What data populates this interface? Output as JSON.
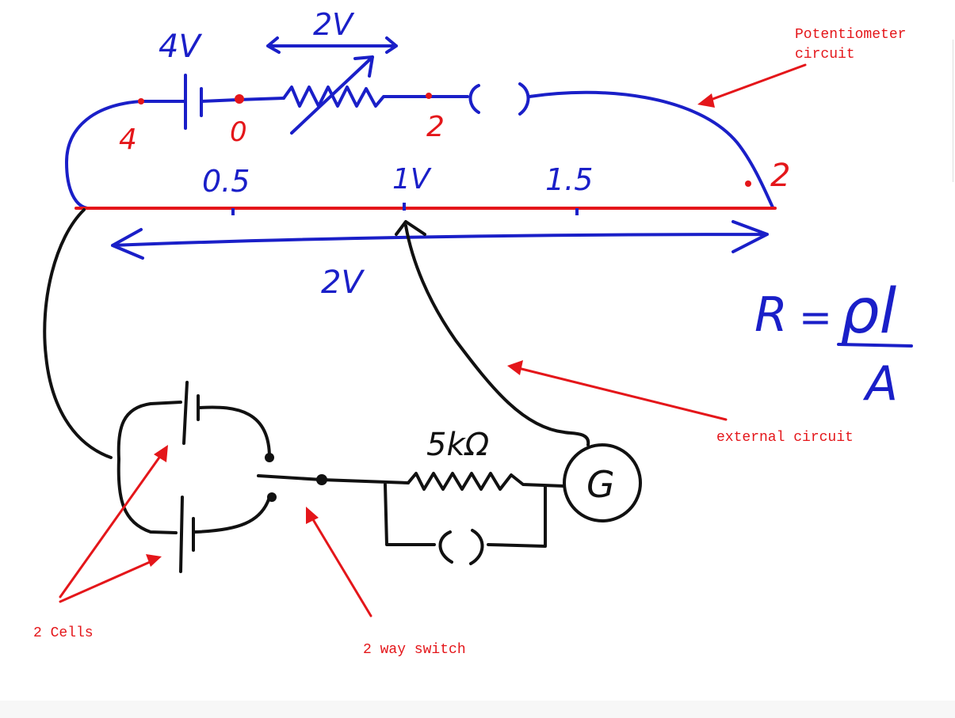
{
  "colors": {
    "blue_ink": "#1a1fc8",
    "black_ink": "#111111",
    "red_ink": "#e4161a",
    "background": "#ffffff"
  },
  "potentiometer": {
    "source_voltage": "4V",
    "rheostat_drop": "2V",
    "node_left": "4",
    "node_mid": "0",
    "node_right": "2",
    "wire_end": "2",
    "marks": [
      "0.5",
      "1V",
      "1.5"
    ],
    "wire_span": "2V"
  },
  "formula": {
    "lhs": "R",
    "equals": "=",
    "numerator": "ρl",
    "denominator": "A"
  },
  "external": {
    "resistor": "5kΩ",
    "galvanometer": "G"
  },
  "annotations": {
    "potentiometer_line1": "Potentiometer",
    "potentiometer_line2": "circuit",
    "external_circuit": "external circuit",
    "two_cells": "2 Cells",
    "two_way_switch": "2 way switch"
  }
}
